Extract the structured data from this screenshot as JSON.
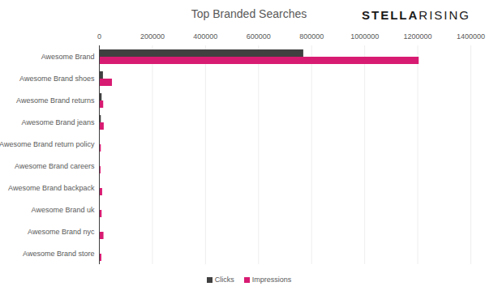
{
  "chart_data": {
    "type": "bar",
    "orientation": "horizontal",
    "title": "Top Branded Searches",
    "annotations": [
      "STELLA",
      "RISING"
    ],
    "categories": [
      "Awesome Brand",
      "Awesome Brand shoes",
      "Awesome Brand returns",
      "Awesome Brand jeans",
      "Awesome Brand return policy",
      "Awesome Brand careers",
      "Awesome Brand backpack",
      "Awesome Brand uk",
      "Awesome Brand nyc",
      "Awesome Brand store"
    ],
    "series": [
      {
        "name": "Clicks",
        "color": "#404040",
        "values": [
          770000,
          15000,
          10000,
          7000,
          3000,
          3000,
          3000,
          2000,
          3000,
          3000
        ]
      },
      {
        "name": "Impressions",
        "color": "#d81b72",
        "values": [
          1205000,
          49000,
          16000,
          18000,
          7000,
          6000,
          12000,
          10000,
          17000,
          9000
        ]
      }
    ],
    "xlim": [
      0,
      1400000
    ],
    "xticks": [
      0,
      200000,
      400000,
      600000,
      800000,
      1000000,
      1200000,
      1400000
    ],
    "grid": true,
    "legend": "bottom"
  }
}
